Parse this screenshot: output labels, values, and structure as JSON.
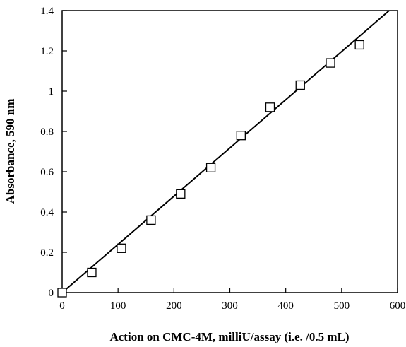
{
  "chart_data": {
    "type": "scatter",
    "title": "",
    "xlabel": "Action on CMC-4M, milliU/assay (i.e. /0.5 mL)",
    "ylabel": "Absorbance,  590 nm",
    "xlim": [
      0,
      600
    ],
    "ylim": [
      0,
      1.4
    ],
    "x_ticks": [
      0,
      100,
      200,
      300,
      400,
      500,
      600
    ],
    "x_tick_labels": [
      "0",
      "100",
      "200",
      "300",
      "400",
      "500",
      "600"
    ],
    "y_ticks": [
      0,
      0.2,
      0.4,
      0.6,
      0.8,
      1.0,
      1.2,
      1.4
    ],
    "y_tick_labels": [
      "0",
      "0.2",
      "0.4",
      "0.6",
      "0.8",
      "1",
      "1.2",
      "1.4"
    ],
    "grid": false,
    "marker": "open-square",
    "series": [
      {
        "x": [
          0,
          53,
          106,
          159,
          212,
          266,
          320,
          372,
          426,
          480,
          532
        ],
        "y": [
          0.0,
          0.1,
          0.22,
          0.36,
          0.49,
          0.62,
          0.78,
          0.92,
          1.03,
          1.14,
          1.23
        ]
      }
    ],
    "fit_line": {
      "type": "linear",
      "x": [
        0,
        585
      ],
      "y": [
        0,
        1.4
      ]
    }
  }
}
